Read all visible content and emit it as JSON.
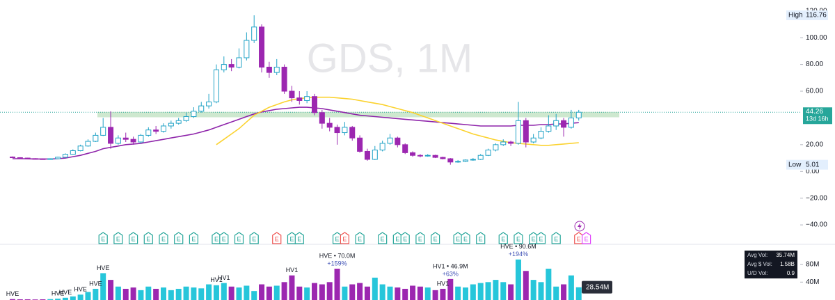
{
  "chart_data": {
    "type": "candlestick",
    "title": "GDS, 1M",
    "up_color": "#1fa2c6",
    "down_color": "#9c27b0",
    "open": [
      10.8,
      10.3,
      10.0,
      9.6,
      9.4,
      9.2,
      9.5,
      10.6,
      12.8,
      15.5,
      19.0,
      22.5,
      27.0,
      33,
      21,
      25,
      24,
      22,
      27,
      31,
      30,
      34,
      36,
      38,
      41,
      45,
      49,
      52,
      76,
      80,
      78,
      85,
      98,
      108,
      78,
      74,
      78,
      60,
      55,
      53,
      56,
      44,
      36,
      33,
      29,
      33,
      25,
      15,
      9,
      16,
      21,
      25,
      20,
      14,
      12,
      11.5,
      12,
      10.5,
      9.5,
      7,
      7.5,
      8.5,
      9,
      12,
      16,
      20,
      22,
      21,
      38,
      22,
      25,
      30,
      34,
      38,
      33,
      40
    ],
    "high": [
      11.2,
      10.6,
      10.3,
      9.9,
      9.7,
      9.8,
      11.0,
      13.5,
      16.5,
      20.0,
      24.0,
      29.0,
      40.0,
      45,
      27,
      29,
      26,
      28,
      33,
      34,
      36,
      38,
      40,
      44,
      48,
      52,
      58,
      80,
      86,
      84,
      92,
      104,
      116.76,
      110,
      82,
      84,
      80,
      64,
      60,
      60,
      58,
      46,
      40,
      35,
      37,
      34,
      27,
      17,
      19,
      23,
      28,
      26,
      21,
      15,
      13,
      13,
      12.5,
      11,
      10,
      8.5,
      9,
      10,
      13,
      17,
      21,
      24,
      23,
      52,
      40,
      28,
      33,
      42,
      43,
      40,
      46,
      46
    ],
    "low": [
      10.0,
      9.7,
      9.3,
      9.0,
      8.9,
      9.0,
      9.3,
      10.4,
      12.5,
      15.0,
      18.5,
      22.0,
      26.5,
      17,
      20,
      22,
      20,
      21,
      26,
      28,
      29,
      32,
      35,
      37,
      40,
      44,
      47,
      51,
      74,
      75,
      77,
      83,
      96,
      74,
      70,
      72,
      58,
      52,
      50,
      51,
      42,
      32,
      30,
      20,
      27,
      23,
      14,
      8,
      8.5,
      15,
      20,
      18,
      13,
      11,
      10.5,
      11,
      10,
      9,
      5.01,
      6.5,
      7,
      8,
      8.5,
      11.5,
      15,
      19,
      19,
      20,
      18,
      21,
      24,
      29,
      31,
      26,
      32,
      38
    ],
    "close": [
      10.3,
      10.0,
      9.6,
      9.4,
      9.2,
      9.5,
      10.6,
      12.8,
      15.5,
      19.0,
      22.5,
      27.0,
      33.0,
      21,
      25,
      24,
      22,
      27,
      31,
      30,
      34,
      36,
      38,
      41,
      45,
      49,
      52,
      76,
      80,
      78,
      85,
      98,
      108,
      78,
      74,
      78,
      60,
      55,
      53,
      56,
      44,
      36,
      33,
      29,
      33,
      25,
      15,
      9,
      16,
      21,
      25,
      20,
      14,
      12,
      11.5,
      12,
      10.5,
      9.5,
      7,
      7.5,
      8.5,
      9,
      12,
      16,
      20,
      22,
      21,
      38,
      22,
      25,
      30,
      34,
      38,
      33,
      40,
      44.26
    ],
    "ylim": [
      -54,
      128.2
    ],
    "yticks": [
      {
        "value": 120,
        "label": "120.00"
      },
      {
        "value": 100,
        "label": "100.00"
      },
      {
        "value": 80,
        "label": "80.00"
      },
      {
        "value": 60,
        "label": "60.00"
      },
      {
        "value": 20,
        "label": "20.00"
      },
      {
        "value": 0,
        "label": "0.00"
      },
      {
        "value": -20,
        "label": "−20.00"
      },
      {
        "value": -40,
        "label": "−40.00"
      }
    ],
    "high_label": {
      "text": "High",
      "value": 116.76
    },
    "low_label": {
      "text": "Low",
      "value": 5.01
    },
    "last_price": {
      "value": 44.26,
      "countdown": "13d 16h",
      "color": "#26a69a"
    },
    "zone": {
      "low": 40.5,
      "high": 44.5,
      "color": "#a5d6a7"
    },
    "lines": [
      {
        "color": "#8e24aa",
        "values": [
          9.5,
          9.5,
          9.4,
          9.3,
          9.3,
          9.3,
          9.5,
          10,
          11,
          12,
          13.5,
          15,
          17,
          18,
          19,
          20,
          20.5,
          21,
          22,
          23,
          24,
          25,
          26,
          27,
          28,
          29.5,
          31,
          33,
          35,
          37,
          39,
          41,
          43,
          44.5,
          45.5,
          46.5,
          47,
          47.5,
          48,
          48,
          47.5,
          47,
          46,
          45,
          44,
          43,
          42,
          41.5,
          41,
          40.5,
          40,
          39.5,
          39,
          38.5,
          38,
          37.5,
          37,
          36.5,
          36,
          35.5,
          35,
          34.5,
          34,
          34,
          34,
          34,
          34,
          34.5,
          34.5,
          34.5,
          35,
          35,
          35.5,
          35.5,
          36,
          36.5
        ]
      },
      {
        "color": "#fbd22e",
        "values": [
          null,
          null,
          null,
          null,
          null,
          null,
          null,
          null,
          null,
          null,
          null,
          null,
          null,
          null,
          null,
          null,
          null,
          null,
          null,
          null,
          null,
          null,
          null,
          null,
          null,
          null,
          null,
          20,
          24,
          28,
          32,
          37,
          42,
          45,
          48,
          50,
          52,
          53.5,
          54.5,
          55,
          55.5,
          55.5,
          55.5,
          55,
          54.5,
          54,
          53,
          52,
          51,
          50,
          48.5,
          47,
          45.5,
          44,
          42,
          40,
          38,
          36,
          34,
          32,
          30,
          28,
          26.5,
          25,
          23.5,
          22.5,
          21.5,
          21,
          20.5,
          20,
          19.5,
          19.5,
          20,
          20.5,
          21,
          21.5
        ]
      }
    ],
    "earnings": {
      "label": "E",
      "items": [
        {
          "at": 12,
          "color": "#26a69a"
        },
        {
          "at": 14,
          "color": "#26a69a"
        },
        {
          "at": 16,
          "color": "#26a69a"
        },
        {
          "at": 18,
          "color": "#26a69a"
        },
        {
          "at": 20,
          "color": "#26a69a"
        },
        {
          "at": 22,
          "color": "#26a69a"
        },
        {
          "at": 24,
          "color": "#26a69a"
        },
        {
          "at": 27,
          "color": "#26a69a"
        },
        {
          "at": 28,
          "color": "#26a69a"
        },
        {
          "at": 30,
          "color": "#26a69a"
        },
        {
          "at": 32,
          "color": "#26a69a"
        },
        {
          "at": 35,
          "color": "#ef5350"
        },
        {
          "at": 37,
          "color": "#26a69a"
        },
        {
          "at": 38,
          "color": "#26a69a"
        },
        {
          "at": 43,
          "color": "#26a69a"
        },
        {
          "at": 44,
          "color": "#ef5350"
        },
        {
          "at": 46,
          "color": "#26a69a"
        },
        {
          "at": 49,
          "color": "#26a69a"
        },
        {
          "at": 51,
          "color": "#26a69a"
        },
        {
          "at": 52,
          "color": "#26a69a"
        },
        {
          "at": 54,
          "color": "#26a69a"
        },
        {
          "at": 56,
          "color": "#26a69a"
        },
        {
          "at": 59,
          "color": "#26a69a"
        },
        {
          "at": 60,
          "color": "#26a69a"
        },
        {
          "at": 62,
          "color": "#26a69a"
        },
        {
          "at": 65,
          "color": "#26a69a"
        },
        {
          "at": 67,
          "color": "#26a69a"
        },
        {
          "at": 69,
          "color": "#26a69a"
        },
        {
          "at": 70,
          "color": "#26a69a"
        },
        {
          "at": 72,
          "color": "#26a69a"
        },
        {
          "at": 75,
          "color": "#ef5350"
        },
        {
          "at": 76,
          "color": "#e040fb"
        }
      ]
    },
    "volume": {
      "up_color": "#26c6da",
      "down_color": "#9c27b0",
      "values": [
        2,
        1.5,
        1.5,
        1.2,
        1.5,
        2,
        3,
        5,
        8,
        12,
        18,
        25,
        60,
        45,
        30,
        25,
        28,
        22,
        30,
        25,
        28,
        22,
        25,
        30,
        28,
        26,
        35,
        33,
        38,
        30,
        28,
        32,
        20,
        35,
        30,
        32,
        40,
        55,
        30,
        28,
        38,
        35,
        40,
        70,
        30,
        35,
        38,
        30,
        50,
        35,
        30,
        28,
        25,
        32,
        30,
        28,
        22,
        25,
        46.9,
        30,
        28,
        35,
        38,
        40,
        45,
        40,
        35,
        90.6,
        65,
        45,
        40,
        70,
        30,
        35,
        55,
        28.54
      ],
      "ylim": [
        0,
        123
      ],
      "yticks": [
        {
          "value": 80,
          "label": "80M"
        },
        {
          "value": 40,
          "label": "40M"
        }
      ],
      "last": {
        "value": 28.54,
        "label": "28.54M"
      },
      "annotations": [
        {
          "at": 0,
          "text": "HVE"
        },
        {
          "at": 6,
          "text": "HVE"
        },
        {
          "at": 7,
          "text": "HVE"
        },
        {
          "at": 9,
          "text": "HVE"
        },
        {
          "at": 11,
          "text": "HVE"
        },
        {
          "at": 12,
          "text": "HVE"
        },
        {
          "at": 27,
          "text": "HV1"
        },
        {
          "at": 28,
          "text": "HV1"
        },
        {
          "at": 37,
          "text": "HV1"
        },
        {
          "at": 43,
          "text": "HVE • 70.0M",
          "sub": "+159%"
        },
        {
          "at": 57,
          "text": "HV1"
        },
        {
          "at": 58,
          "text": "HV1 • 46.9M",
          "sub": "+63%"
        },
        {
          "at": 67,
          "text": "HVE • 90.6M",
          "sub": "+194%"
        }
      ],
      "stats": [
        {
          "label": "Avg Vol:",
          "value": "35.74M"
        },
        {
          "label": "Avg $ Vol:",
          "value": "1.58B"
        },
        {
          "label": "U/D Vol:",
          "value": "0.9"
        }
      ]
    }
  }
}
